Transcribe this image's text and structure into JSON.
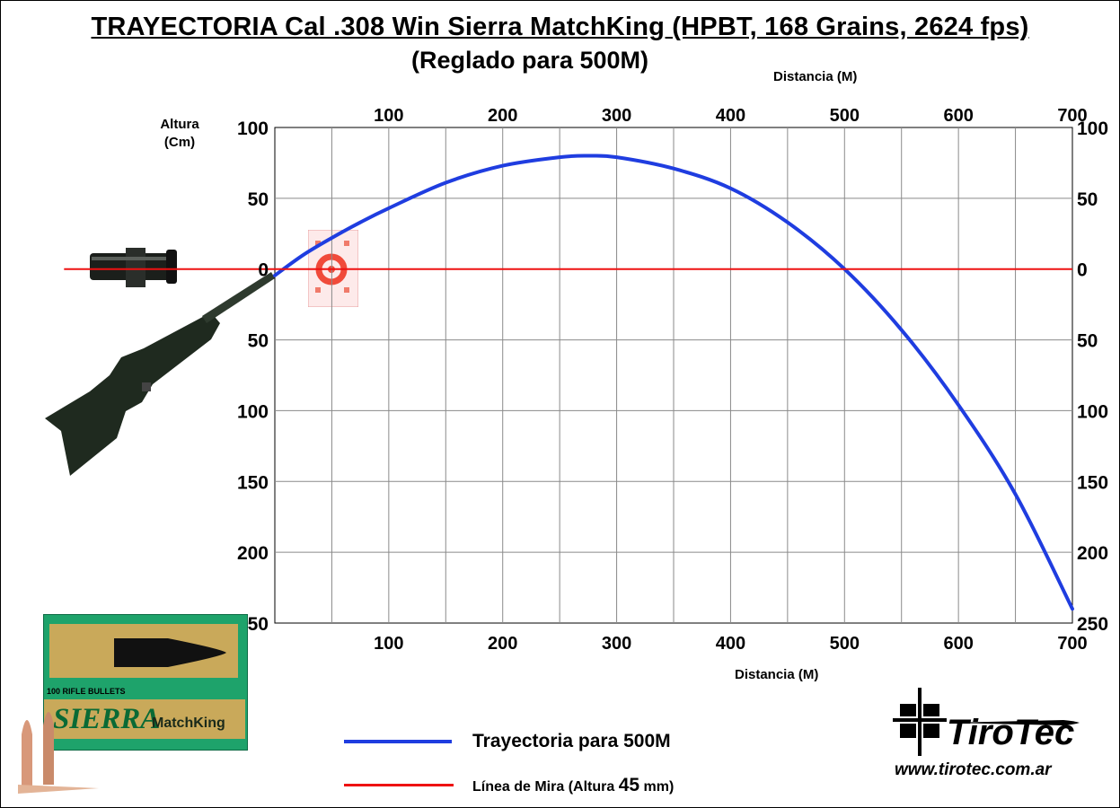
{
  "title": "TRAYECTORIA Cal .308 Win Sierra MatchKing (HPBT, 168 Grains, 2624 fps)",
  "subtitle": "(Reglado para 500M)",
  "chart_data": {
    "type": "line",
    "title": "TRAYECTORIA Cal .308 Win Sierra MatchKing (HPBT, 168 Grains, 2624 fps)",
    "subtitle": "(Reglado para 500M)",
    "xlabel": "Distancia (M)",
    "ylabel": "Altura (Cm)",
    "xlim": [
      0,
      700
    ],
    "ylim": [
      -250,
      100
    ],
    "x_ticks": [
      100,
      200,
      300,
      400,
      500,
      600,
      700
    ],
    "x_tick_labels": [
      "100",
      "200",
      "300",
      "400",
      "500",
      "600",
      "700"
    ],
    "x_minor_gridlines": [
      50,
      150,
      250,
      350,
      450,
      550,
      650
    ],
    "y_ticks": [
      100,
      50,
      0,
      -50,
      -100,
      -150,
      -200,
      -250
    ],
    "y_tick_labels": [
      "100",
      "50",
      "0",
      "50",
      "100",
      "150",
      "200",
      "250"
    ],
    "grid": true,
    "series": [
      {
        "name": "Trayectoria para 500M",
        "color": "#1f3de0",
        "x": [
          0,
          25,
          50,
          75,
          100,
          150,
          200,
          250,
          275,
          300,
          350,
          400,
          450,
          500,
          550,
          600,
          650,
          700
        ],
        "y": [
          -4.5,
          10,
          22,
          33,
          43,
          61,
          73,
          79,
          80,
          79,
          71,
          57,
          33,
          0,
          -43,
          -96,
          -159,
          -240
        ]
      },
      {
        "name": "Línea de Mira",
        "color": "#ee1111",
        "x": [
          -185,
          700
        ],
        "y": [
          0,
          0
        ]
      }
    ]
  },
  "legend": {
    "trajectory_label": "Trayectoria para 500M",
    "sight_label_prefix": "Línea de Mira (Altura",
    "sight_height": "45",
    "sight_unit": "mm)",
    "trajectory_color": "#1f3de0",
    "sight_color": "#ee1111"
  },
  "box": {
    "count_label": "100 RIFLE BULLETS",
    "brand": "SIERRA",
    "product": "MatchKing"
  },
  "logo": {
    "brand": "TiroTec",
    "url": "www.tirotec.com.ar"
  }
}
